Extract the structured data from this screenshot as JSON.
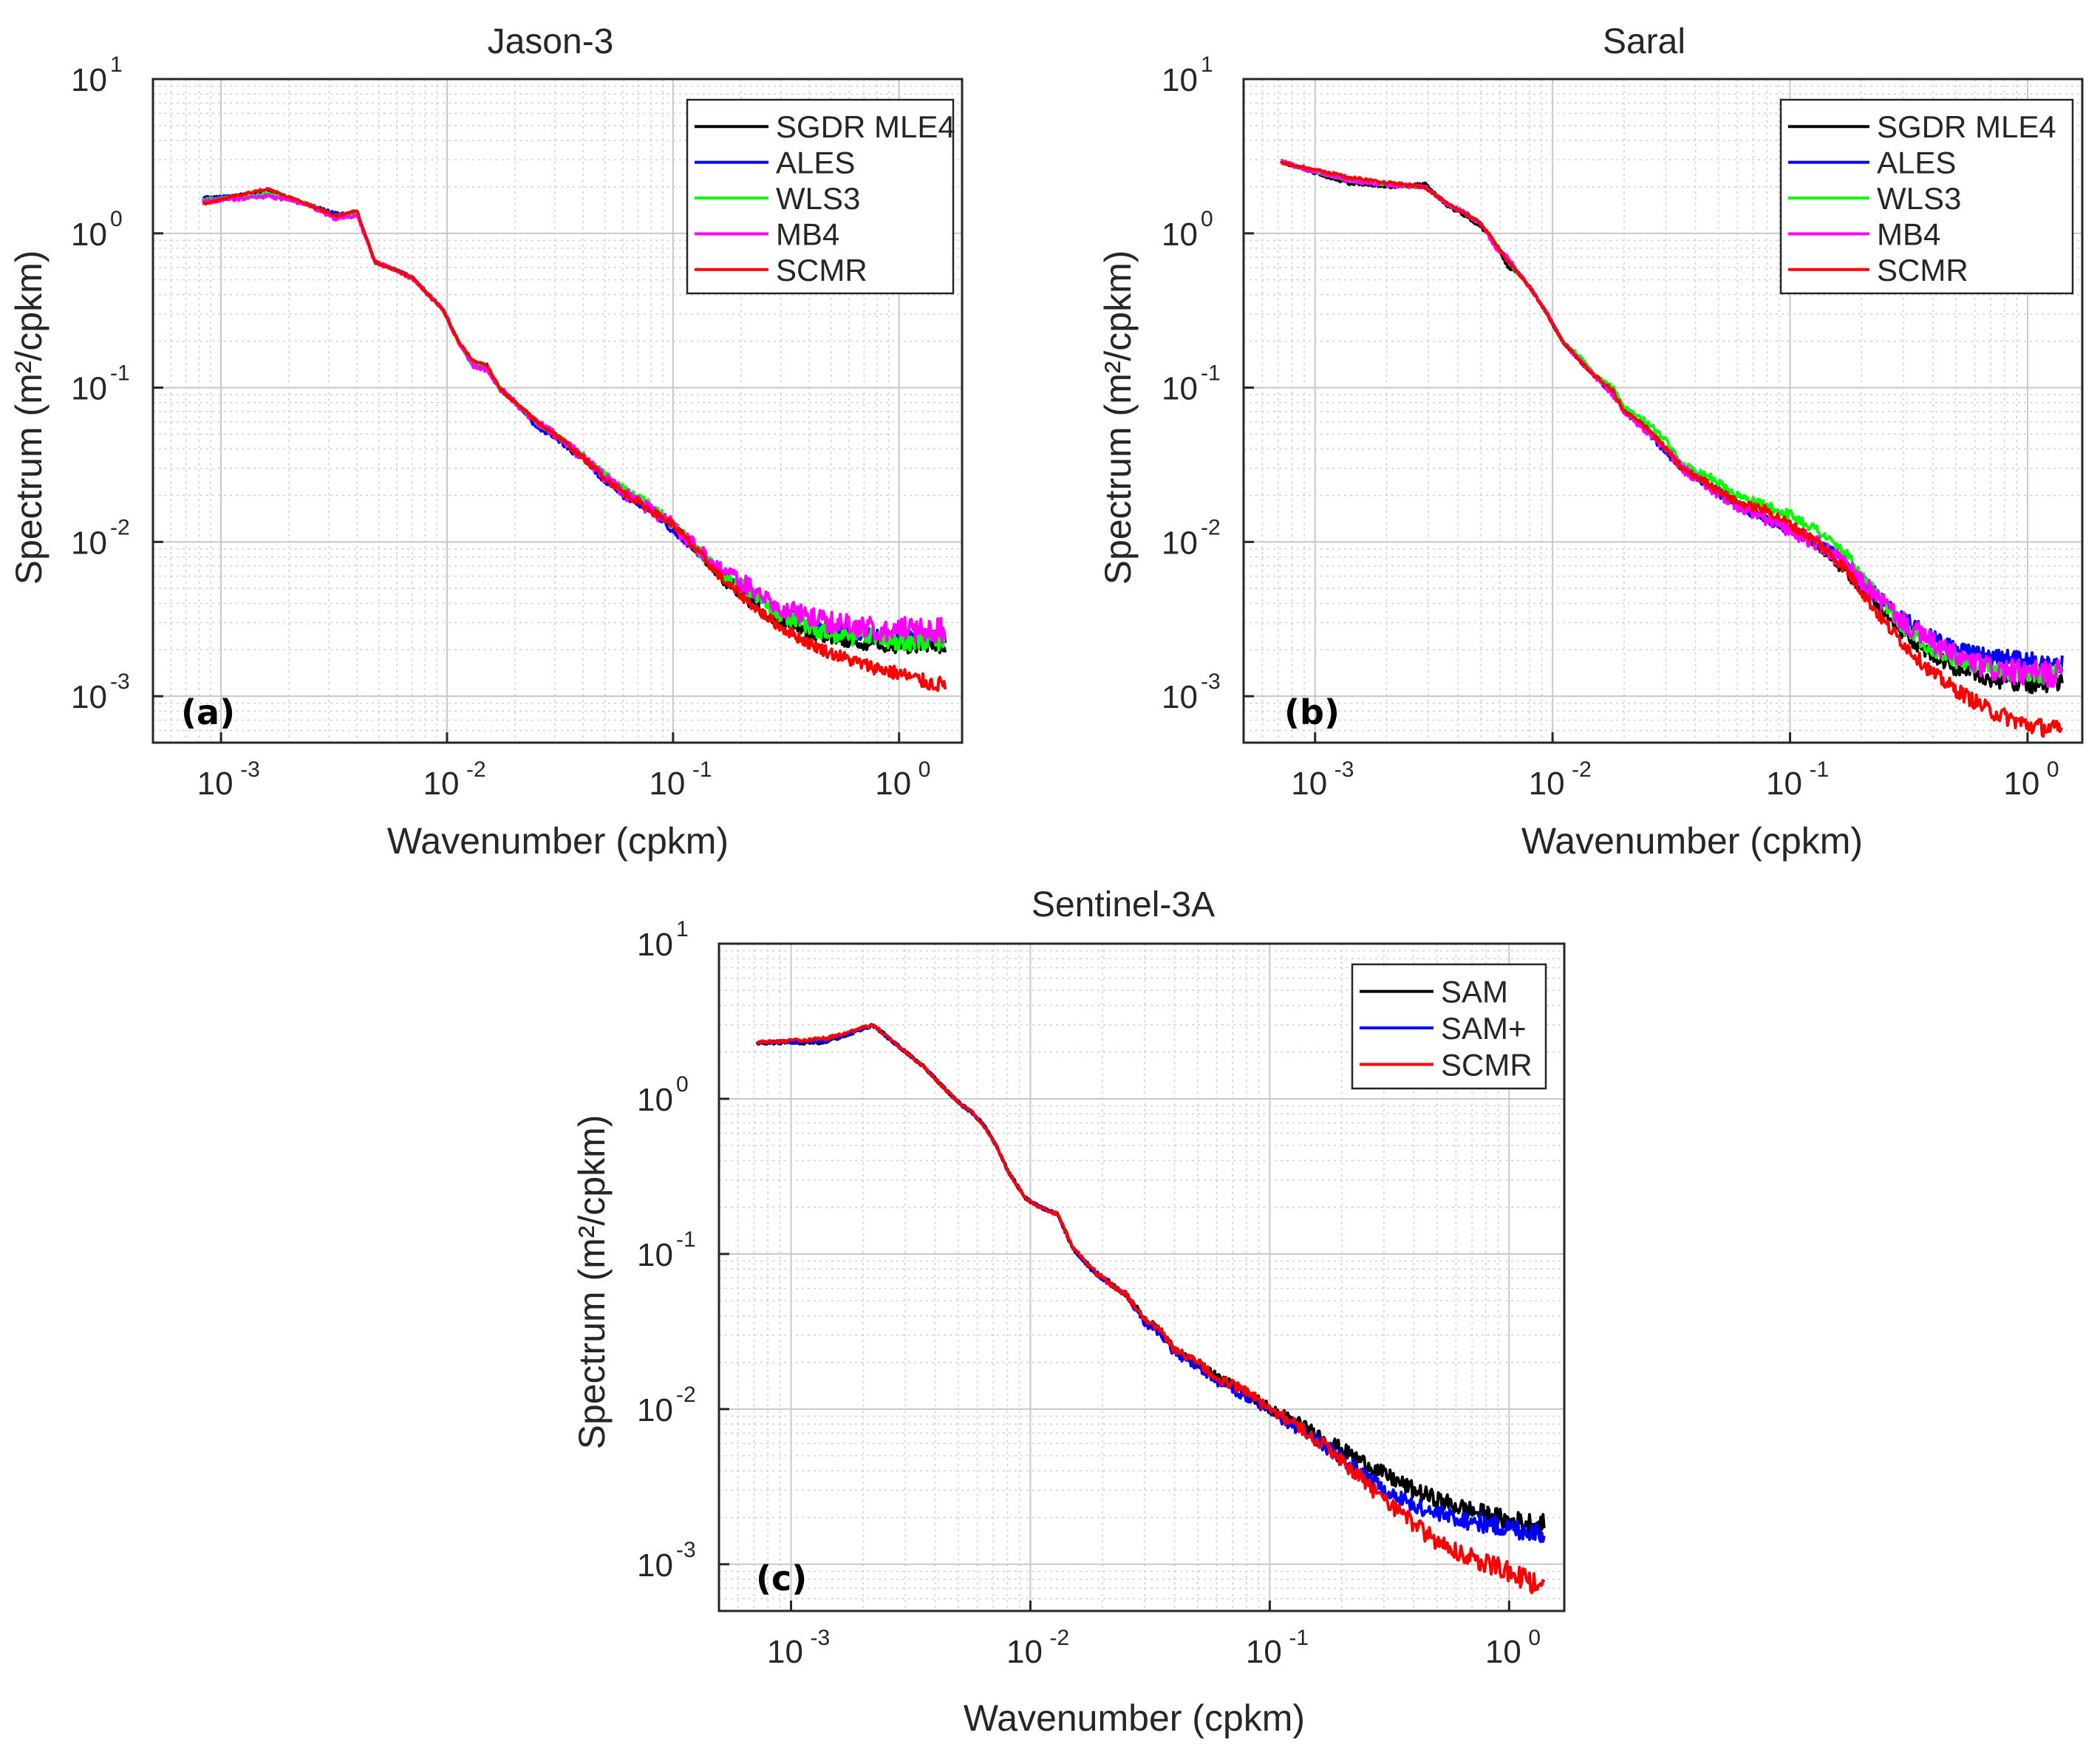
{
  "figure": {
    "colors": {
      "black": "#000000",
      "blue": "#0000ff",
      "green": "#00ff00",
      "magenta": "#ff00ff",
      "red": "#ff0000",
      "grid": "#d0d0d0",
      "axis": "#262626"
    }
  },
  "chart_data": [
    {
      "type": "line",
      "id": "a",
      "title": "Jason-3",
      "panel_label": "(a)",
      "xlabel": "Wavenumber (cpkm)",
      "ylabel": "Spectrum (m²/cpkm)",
      "xscale": "log",
      "yscale": "log",
      "xlim": [
        0.0005,
        1.9
      ],
      "ylim": [
        0.0005,
        10
      ],
      "xticks": [
        0.001,
        0.01,
        0.1,
        1
      ],
      "xtick_labels": [
        {
          "base": "10",
          "exp": "-3"
        },
        {
          "base": "10",
          "exp": "-2"
        },
        {
          "base": "10",
          "exp": "-1"
        },
        {
          "base": "10",
          "exp": "0"
        }
      ],
      "yticks": [
        0.001,
        0.01,
        0.1,
        1,
        10
      ],
      "ytick_labels": [
        {
          "base": "10",
          "exp": "-3"
        },
        {
          "base": "10",
          "exp": "-2"
        },
        {
          "base": "10",
          "exp": "-1"
        },
        {
          "base": "10",
          "exp": "0"
        },
        {
          "base": "10",
          "exp": "1"
        }
      ],
      "grid": true,
      "legend_position": "top-right",
      "x": [
        0.00083,
        0.0016,
        0.0024,
        0.0032,
        0.004,
        0.0048,
        0.0056,
        0.0064,
        0.0072,
        0.008,
        0.0096,
        0.0112,
        0.013,
        0.015,
        0.017,
        0.02,
        0.025,
        0.03,
        0.04,
        0.05,
        0.06,
        0.08,
        0.1,
        0.13,
        0.17,
        0.2,
        0.25,
        0.3,
        0.4,
        0.5,
        0.7,
        1.0,
        1.4,
        1.6
      ],
      "series": [
        {
          "name": "SGDR MLE4",
          "color": "#000000",
          "noise": 0.05,
          "values": [
            1.6,
            1.9,
            1.55,
            1.3,
            1.35,
            0.65,
            0.6,
            0.55,
            0.5,
            0.42,
            0.32,
            0.2,
            0.14,
            0.14,
            0.1,
            0.08,
            0.06,
            0.05,
            0.035,
            0.026,
            0.021,
            0.016,
            0.013,
            0.0085,
            0.0055,
            0.0045,
            0.0035,
            0.003,
            0.0026,
            0.0024,
            0.0022,
            0.0021,
            0.0021,
            0.0021
          ]
        },
        {
          "name": "ALES",
          "color": "#0000ff",
          "noise": 0.05,
          "values": [
            1.7,
            1.8,
            1.55,
            1.35,
            1.35,
            0.65,
            0.6,
            0.55,
            0.5,
            0.42,
            0.32,
            0.2,
            0.14,
            0.14,
            0.1,
            0.08,
            0.055,
            0.048,
            0.034,
            0.025,
            0.02,
            0.016,
            0.012,
            0.0085,
            0.0058,
            0.005,
            0.0042,
            0.0035,
            0.003,
            0.0027,
            0.0025,
            0.0024,
            0.0024,
            0.0024
          ]
        },
        {
          "name": "WLS3",
          "color": "#00ff00",
          "noise": 0.07,
          "values": [
            1.65,
            1.8,
            1.55,
            1.3,
            1.35,
            0.65,
            0.6,
            0.55,
            0.5,
            0.42,
            0.32,
            0.2,
            0.14,
            0.14,
            0.1,
            0.08,
            0.06,
            0.05,
            0.036,
            0.027,
            0.022,
            0.017,
            0.013,
            0.0088,
            0.006,
            0.0052,
            0.0042,
            0.0034,
            0.0028,
            0.0025,
            0.0024,
            0.0023,
            0.0023,
            0.0023
          ]
        },
        {
          "name": "MB4",
          "color": "#ff00ff",
          "noise": 0.09,
          "values": [
            1.6,
            1.75,
            1.55,
            1.25,
            1.3,
            0.65,
            0.6,
            0.55,
            0.5,
            0.42,
            0.32,
            0.2,
            0.14,
            0.13,
            0.1,
            0.08,
            0.06,
            0.05,
            0.035,
            0.026,
            0.021,
            0.016,
            0.013,
            0.0088,
            0.0062,
            0.0055,
            0.0045,
            0.0038,
            0.0032,
            0.003,
            0.0028,
            0.0027,
            0.0027,
            0.0027
          ]
        },
        {
          "name": "SCMR",
          "color": "#ff0000",
          "noise": 0.05,
          "values": [
            1.55,
            1.95,
            1.55,
            1.3,
            1.4,
            0.65,
            0.6,
            0.55,
            0.5,
            0.42,
            0.32,
            0.2,
            0.15,
            0.14,
            0.1,
            0.08,
            0.06,
            0.05,
            0.035,
            0.026,
            0.021,
            0.016,
            0.013,
            0.0085,
            0.0055,
            0.0045,
            0.0034,
            0.0028,
            0.0022,
            0.0019,
            0.0016,
            0.0014,
            0.0012,
            0.0012
          ]
        }
      ]
    },
    {
      "type": "line",
      "id": "b",
      "title": "Saral",
      "panel_label": "(b)",
      "xlabel": "Wavenumber (cpkm)",
      "ylabel": "Spectrum (m²/cpkm)",
      "xscale": "log",
      "yscale": "log",
      "xlim": [
        0.0005,
        1.7
      ],
      "ylim": [
        0.0005,
        10
      ],
      "xticks": [
        0.001,
        0.01,
        0.1,
        1
      ],
      "xtick_labels": [
        {
          "base": "10",
          "exp": "-3"
        },
        {
          "base": "10",
          "exp": "-2"
        },
        {
          "base": "10",
          "exp": "-1"
        },
        {
          "base": "10",
          "exp": "0"
        }
      ],
      "yticks": [
        0.001,
        0.01,
        0.1,
        1,
        10
      ],
      "ytick_labels": [
        {
          "base": "10",
          "exp": "-3"
        },
        {
          "base": "10",
          "exp": "-2"
        },
        {
          "base": "10",
          "exp": "-1"
        },
        {
          "base": "10",
          "exp": "0"
        },
        {
          "base": "10",
          "exp": "1"
        }
      ],
      "grid": true,
      "legend_position": "top-right",
      "x": [
        0.00072,
        0.0014,
        0.0022,
        0.0029,
        0.0036,
        0.0043,
        0.005,
        0.0058,
        0.0065,
        0.0072,
        0.008,
        0.0095,
        0.011,
        0.013,
        0.015,
        0.018,
        0.02,
        0.025,
        0.03,
        0.035,
        0.045,
        0.06,
        0.08,
        0.1,
        0.13,
        0.17,
        0.2,
        0.25,
        0.3,
        0.4,
        0.5,
        0.7,
        1.0,
        1.4
      ],
      "series": [
        {
          "name": "SGDR MLE4",
          "color": "#000000",
          "noise": 0.06,
          "values": [
            2.9,
            2.1,
            2.0,
            2.1,
            1.5,
            1.3,
            1.1,
            0.85,
            0.6,
            0.55,
            0.45,
            0.3,
            0.2,
            0.15,
            0.12,
            0.095,
            0.07,
            0.055,
            0.04,
            0.03,
            0.024,
            0.018,
            0.014,
            0.012,
            0.0095,
            0.0065,
            0.005,
            0.0035,
            0.0025,
            0.0018,
            0.0015,
            0.0013,
            0.0012,
            0.0012
          ]
        },
        {
          "name": "ALES",
          "color": "#0000ff",
          "noise": 0.06,
          "values": [
            2.9,
            2.2,
            2.05,
            2.0,
            1.55,
            1.35,
            1.15,
            0.85,
            0.65,
            0.55,
            0.45,
            0.3,
            0.2,
            0.15,
            0.12,
            0.09,
            0.07,
            0.052,
            0.038,
            0.03,
            0.023,
            0.017,
            0.014,
            0.012,
            0.01,
            0.0075,
            0.0058,
            0.0042,
            0.0032,
            0.0024,
            0.002,
            0.0018,
            0.0017,
            0.0016
          ]
        },
        {
          "name": "WLS3",
          "color": "#00ff00",
          "noise": 0.06,
          "values": [
            2.9,
            2.2,
            2.05,
            2.0,
            1.55,
            1.35,
            1.15,
            0.85,
            0.65,
            0.55,
            0.45,
            0.3,
            0.2,
            0.16,
            0.12,
            0.1,
            0.075,
            0.06,
            0.045,
            0.032,
            0.027,
            0.02,
            0.017,
            0.015,
            0.012,
            0.0085,
            0.006,
            0.004,
            0.0028,
            0.002,
            0.0017,
            0.0015,
            0.0014,
            0.0014
          ]
        },
        {
          "name": "MB4",
          "color": "#ff00ff",
          "noise": 0.09,
          "values": [
            2.9,
            2.2,
            2.05,
            2.0,
            1.55,
            1.35,
            1.15,
            0.8,
            0.7,
            0.55,
            0.45,
            0.3,
            0.2,
            0.15,
            0.12,
            0.09,
            0.07,
            0.052,
            0.04,
            0.03,
            0.023,
            0.017,
            0.014,
            0.012,
            0.0098,
            0.0072,
            0.0055,
            0.004,
            0.003,
            0.0022,
            0.0018,
            0.0015,
            0.0014,
            0.0014
          ]
        },
        {
          "name": "SCMR",
          "color": "#ff0000",
          "noise": 0.06,
          "values": [
            2.9,
            2.3,
            2.1,
            2.0,
            1.55,
            1.35,
            1.15,
            0.85,
            0.65,
            0.55,
            0.45,
            0.3,
            0.2,
            0.15,
            0.12,
            0.095,
            0.07,
            0.055,
            0.04,
            0.03,
            0.024,
            0.018,
            0.016,
            0.013,
            0.01,
            0.0068,
            0.0048,
            0.003,
            0.0022,
            0.0014,
            0.0011,
            0.0008,
            0.00065,
            0.0006
          ]
        }
      ]
    },
    {
      "type": "line",
      "id": "c",
      "title": "Sentinel-3A",
      "panel_label": "(c)",
      "xlabel": "Wavenumber (cpkm)",
      "ylabel": "Spectrum (m²/cpkm)",
      "xscale": "log",
      "yscale": "log",
      "xlim": [
        0.0005,
        1.7
      ],
      "ylim": [
        0.0005,
        10
      ],
      "xticks": [
        0.001,
        0.01,
        0.1,
        1
      ],
      "xtick_labels": [
        {
          "base": "10",
          "exp": "-3"
        },
        {
          "base": "10",
          "exp": "-2"
        },
        {
          "base": "10",
          "exp": "-1"
        },
        {
          "base": "10",
          "exp": "0"
        }
      ],
      "yticks": [
        0.001,
        0.01,
        0.1,
        1,
        10
      ],
      "ytick_labels": [
        {
          "base": "10",
          "exp": "-3"
        },
        {
          "base": "10",
          "exp": "-2"
        },
        {
          "base": "10",
          "exp": "-1"
        },
        {
          "base": "10",
          "exp": "0"
        },
        {
          "base": "10",
          "exp": "1"
        }
      ],
      "grid": true,
      "legend_position": "top-right",
      "x": [
        0.00072,
        0.0014,
        0.0022,
        0.0029,
        0.0036,
        0.0043,
        0.005,
        0.0058,
        0.0065,
        0.0072,
        0.008,
        0.0095,
        0.011,
        0.013,
        0.015,
        0.018,
        0.02,
        0.025,
        0.03,
        0.035,
        0.04,
        0.05,
        0.06,
        0.08,
        0.1,
        0.13,
        0.17,
        0.2,
        0.25,
        0.3,
        0.4,
        0.5,
        0.7,
        1.0,
        1.4
      ],
      "series": [
        {
          "name": "SAM",
          "color": "#000000",
          "noise": 0.07,
          "values": [
            2.3,
            2.3,
            3.0,
            2.1,
            1.6,
            1.2,
            0.95,
            0.8,
            0.65,
            0.5,
            0.35,
            0.23,
            0.2,
            0.18,
            0.11,
            0.08,
            0.07,
            0.055,
            0.038,
            0.032,
            0.024,
            0.02,
            0.016,
            0.013,
            0.01,
            0.0082,
            0.0065,
            0.0055,
            0.0045,
            0.0038,
            0.003,
            0.0026,
            0.0022,
            0.0019,
            0.0018
          ]
        },
        {
          "name": "SAM+",
          "color": "#0000ff",
          "noise": 0.07,
          "values": [
            2.3,
            2.35,
            2.95,
            2.1,
            1.6,
            1.2,
            0.95,
            0.8,
            0.65,
            0.5,
            0.35,
            0.23,
            0.2,
            0.18,
            0.11,
            0.08,
            0.07,
            0.055,
            0.036,
            0.03,
            0.023,
            0.019,
            0.015,
            0.012,
            0.0095,
            0.0075,
            0.0058,
            0.0048,
            0.0038,
            0.003,
            0.0024,
            0.0021,
            0.0019,
            0.0017,
            0.0016
          ]
        },
        {
          "name": "SCMR",
          "color": "#ff0000",
          "noise": 0.07,
          "values": [
            2.3,
            2.45,
            3.0,
            2.1,
            1.6,
            1.2,
            0.95,
            0.8,
            0.65,
            0.5,
            0.35,
            0.23,
            0.2,
            0.18,
            0.11,
            0.08,
            0.07,
            0.055,
            0.038,
            0.032,
            0.024,
            0.02,
            0.016,
            0.013,
            0.01,
            0.0078,
            0.0058,
            0.0046,
            0.0034,
            0.0026,
            0.0018,
            0.0014,
            0.0011,
            0.0009,
            0.0007
          ]
        }
      ]
    }
  ]
}
